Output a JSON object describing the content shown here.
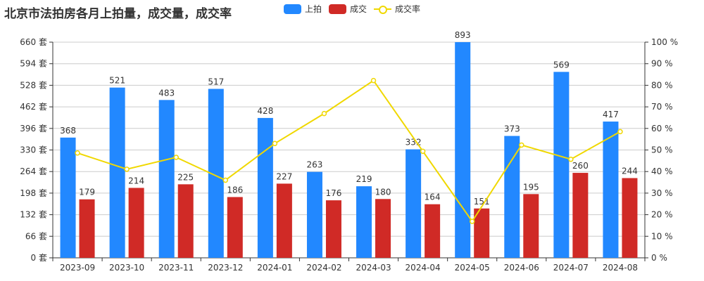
{
  "chart_data": {
    "type": "bar",
    "title": "北京市法拍房各月上拍量，成交量，成交率",
    "categories": [
      "2023-09",
      "2023-10",
      "2023-11",
      "2023-12",
      "2024-01",
      "2024-02",
      "2024-03",
      "2024-04",
      "2024-05",
      "2024-06",
      "2024-07",
      "2024-08"
    ],
    "series": [
      {
        "name": "上拍",
        "type": "bar",
        "color": "#2288ff",
        "axis": "left",
        "values": [
          368,
          521,
          483,
          517,
          428,
          263,
          219,
          332,
          893,
          373,
          569,
          417
        ]
      },
      {
        "name": "成交",
        "type": "bar",
        "color": "#d02a26",
        "axis": "left",
        "values": [
          179,
          214,
          225,
          186,
          227,
          176,
          180,
          164,
          151,
          195,
          260,
          244
        ]
      },
      {
        "name": "成交率",
        "type": "line",
        "color": "#f0d800",
        "axis": "right",
        "values": [
          48.6,
          41.1,
          46.6,
          36.0,
          53.0,
          66.9,
          82.2,
          49.4,
          16.9,
          52.3,
          45.7,
          58.5
        ]
      }
    ],
    "left_axis": {
      "ticks": [
        0,
        66,
        132,
        198,
        264,
        330,
        396,
        462,
        528,
        594,
        660
      ],
      "unit": "套",
      "ylim": [
        0,
        660
      ]
    },
    "right_axis": {
      "ticks": [
        0,
        10,
        20,
        30,
        40,
        50,
        60,
        70,
        80,
        90,
        100
      ],
      "unit": "%",
      "ylim": [
        0,
        100
      ]
    },
    "xlabel": "",
    "ylabel": "",
    "grid": true,
    "legend_position": "top"
  },
  "legend": {
    "items": [
      "上拍",
      "成交",
      "成交率"
    ]
  }
}
